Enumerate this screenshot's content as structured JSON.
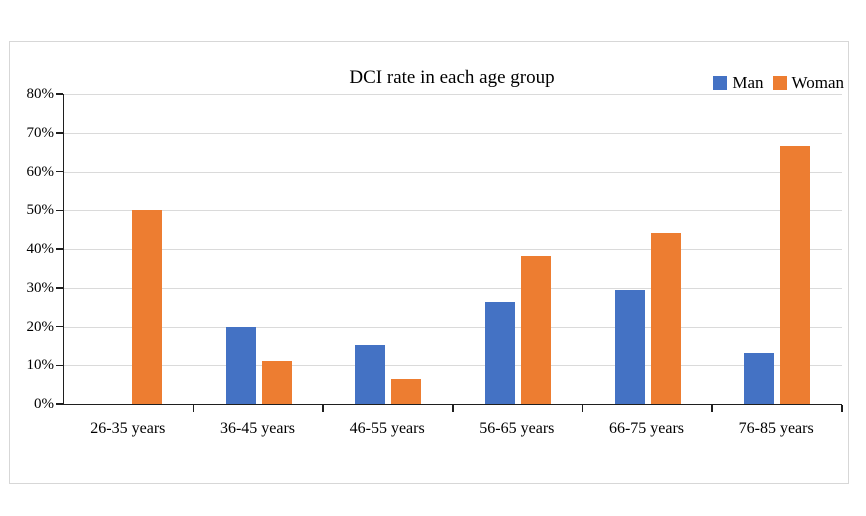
{
  "chart_data": {
    "type": "bar",
    "title": "DCI rate in each age group",
    "categories": [
      "26-35 years",
      "36-45 years",
      "46-55 years",
      "56-65 years",
      "66-75 years",
      "76-85 years"
    ],
    "series": [
      {
        "name": "Man",
        "color": "#4472C4",
        "values": [
          0,
          20,
          15.2,
          26.3,
          29.4,
          13.2
        ]
      },
      {
        "name": "Woman",
        "color": "#ED7D31",
        "values": [
          50,
          11.1,
          6.5,
          38.2,
          44.1,
          66.7
        ]
      }
    ],
    "xlabel": "",
    "ylabel": "",
    "ylim": [
      0,
      80
    ],
    "ytick_step": 10,
    "ytick_labels": [
      "0%",
      "10%",
      "20%",
      "30%",
      "40%",
      "50%",
      "60%",
      "70%",
      "80%"
    ],
    "value_format": "percent",
    "grid": "horizontal",
    "legend_position": "top-right"
  }
}
